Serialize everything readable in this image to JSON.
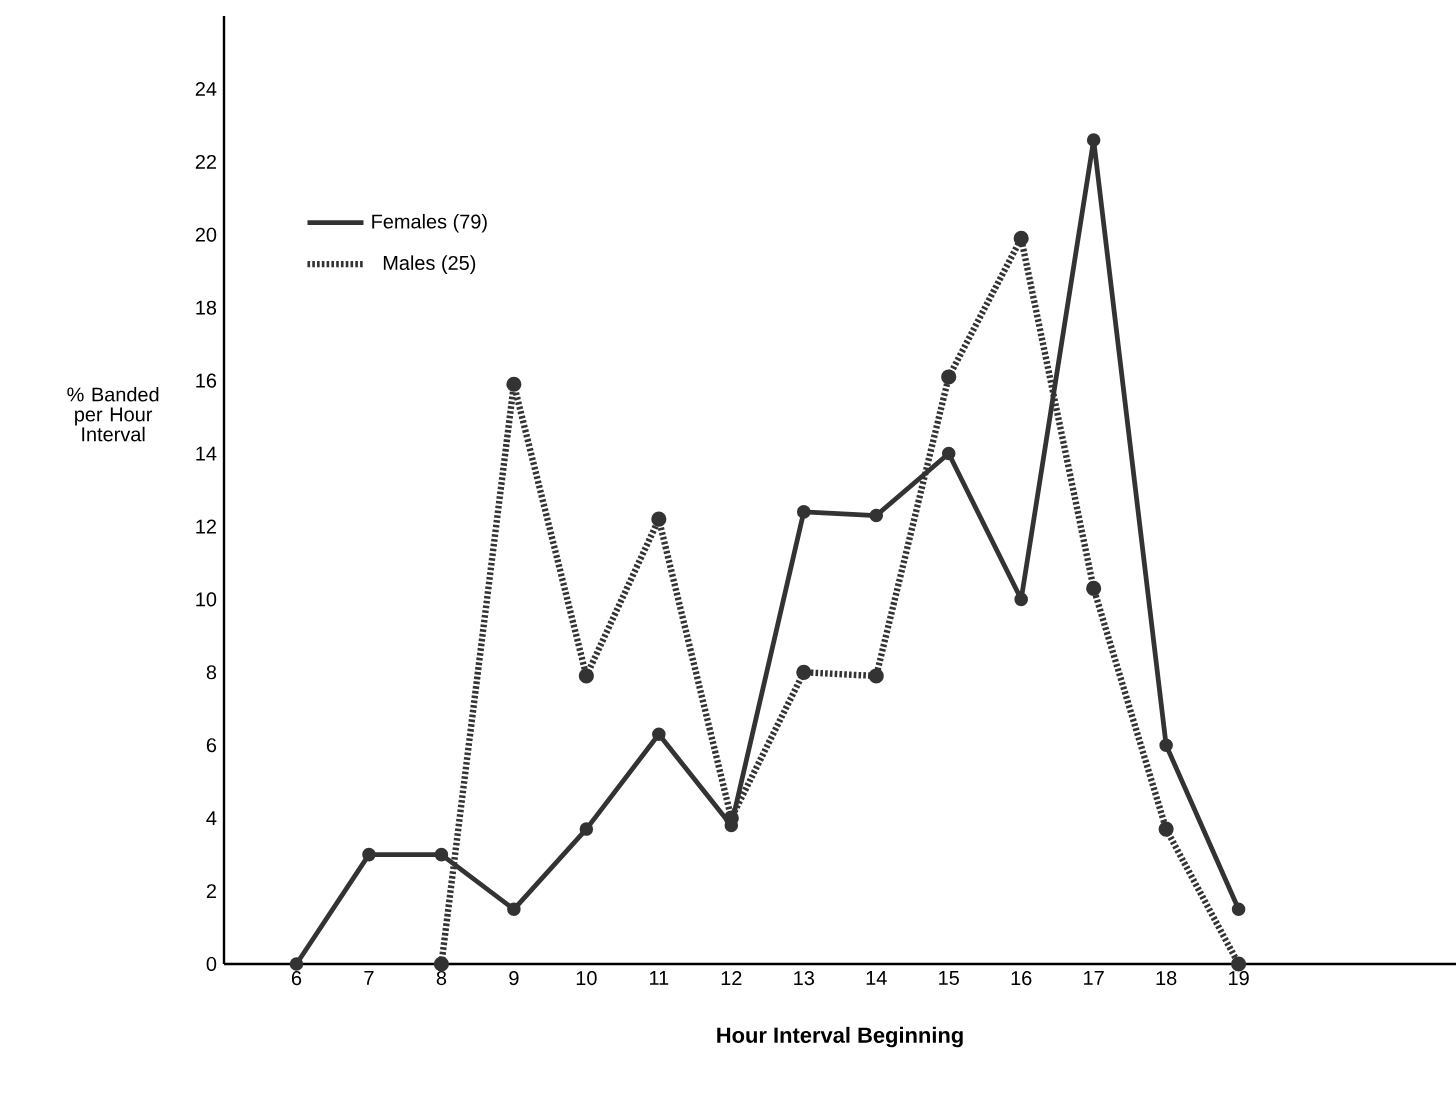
{
  "chart_data": {
    "type": "line",
    "xlabel": "Hour Interval Beginning",
    "ylabel": "% Banded per Hour Interval",
    "x": [
      6,
      7,
      8,
      9,
      10,
      11,
      12,
      13,
      14,
      15,
      16,
      17,
      18,
      19
    ],
    "series": [
      {
        "name": "Females (79)",
        "color": "#333333",
        "line_style": "solid",
        "values": [
          0,
          3.0,
          3.0,
          1.5,
          3.7,
          6.3,
          3.8,
          12.4,
          12.3,
          14.0,
          10.0,
          22.6,
          6.0,
          1.5
        ]
      },
      {
        "name": "Males (25)",
        "color": "#333333",
        "line_style": "dotted",
        "values": [
          null,
          null,
          0,
          15.9,
          7.9,
          12.2,
          4.0,
          8.0,
          7.9,
          16.1,
          19.9,
          10.3,
          3.7,
          0
        ]
      }
    ],
    "xlim": [
      5,
      22
    ],
    "ylim": [
      0,
      26
    ],
    "xticks": [
      6,
      7,
      8,
      9,
      10,
      11,
      12,
      13,
      14,
      15,
      16,
      17,
      18,
      19
    ],
    "yticks": [
      0,
      2,
      4,
      6,
      8,
      10,
      12,
      14,
      16,
      18,
      20,
      22,
      24
    ],
    "marker": "circle",
    "legend": "top left",
    "grid": false
  }
}
